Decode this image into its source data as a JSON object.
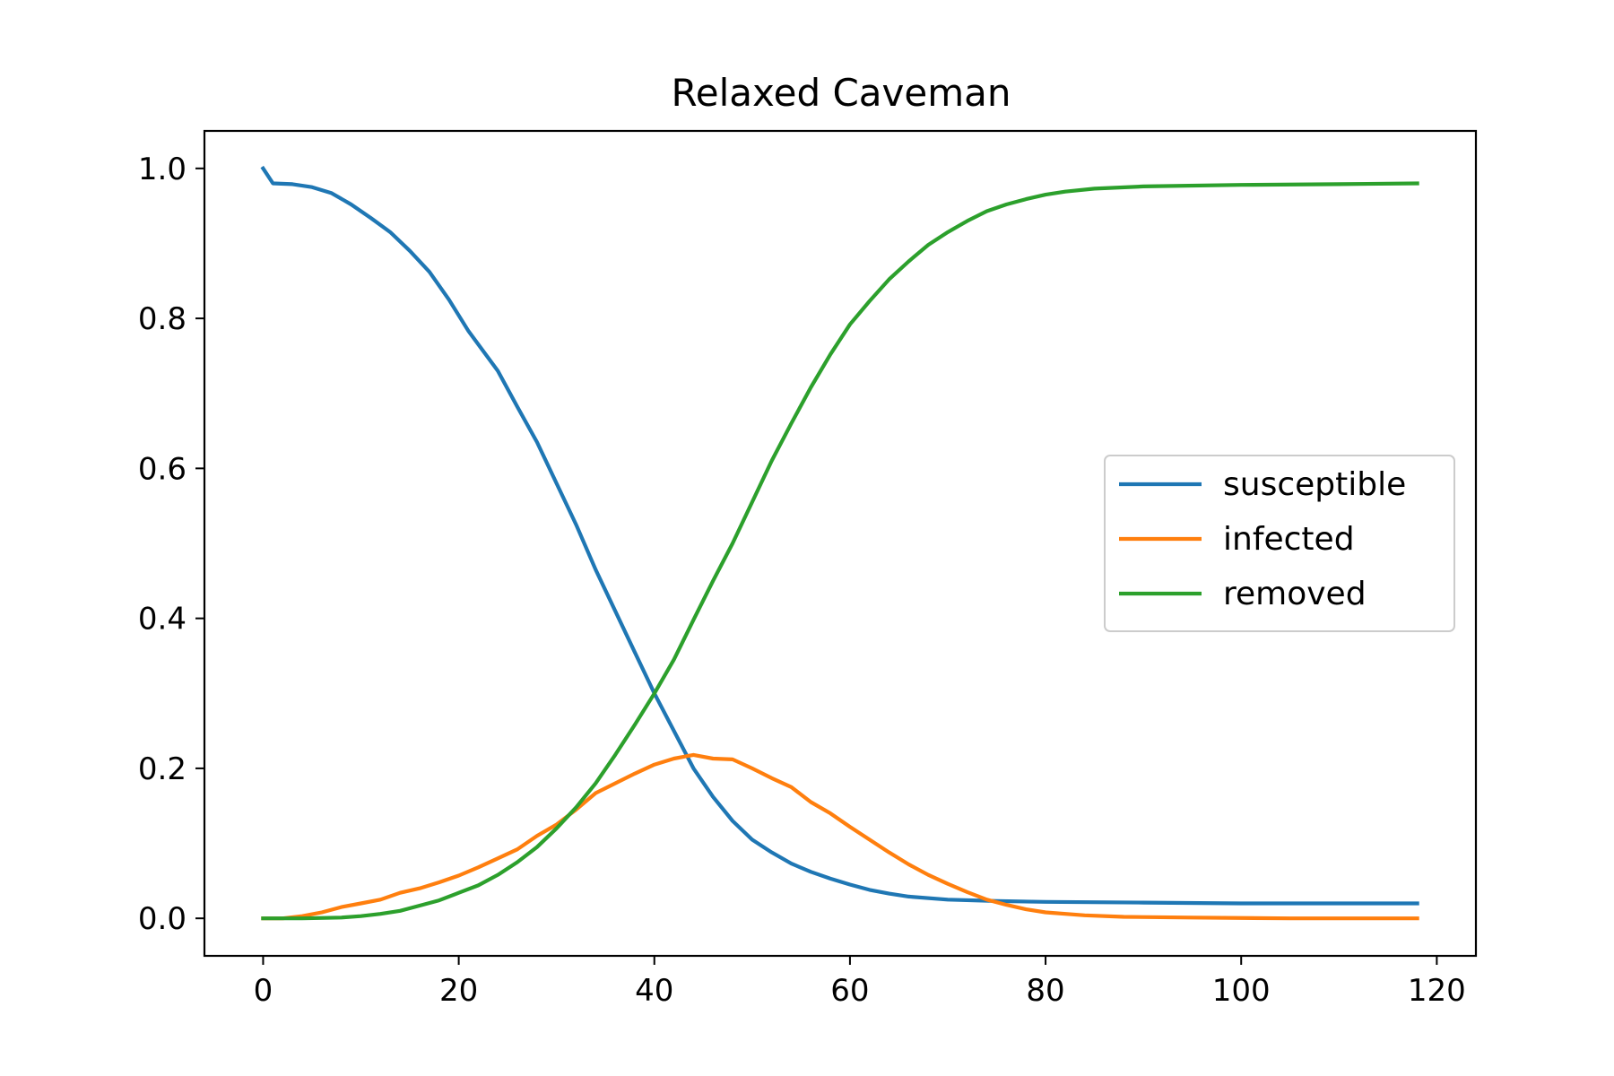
{
  "chart_data": {
    "type": "line",
    "title": "Relaxed Caveman",
    "xlabel": "",
    "ylabel": "",
    "xlim": [
      -6,
      124
    ],
    "ylim": [
      -0.05,
      1.05
    ],
    "xticks": [
      0,
      20,
      40,
      60,
      80,
      100,
      120
    ],
    "xtick_labels": [
      "0",
      "20",
      "40",
      "60",
      "80",
      "100",
      "120"
    ],
    "yticks": [
      0.0,
      0.2,
      0.4,
      0.6,
      0.8,
      1.0
    ],
    "ytick_labels": [
      "0.0",
      "0.2",
      "0.4",
      "0.6",
      "0.8",
      "1.0"
    ],
    "grid": false,
    "legend_position": "center-right",
    "series": [
      {
        "name": "susceptible",
        "color": "#1f77b4",
        "points": [
          [
            0,
            1.0
          ],
          [
            1,
            0.98
          ],
          [
            3,
            0.979
          ],
          [
            5,
            0.975
          ],
          [
            7,
            0.967
          ],
          [
            9,
            0.952
          ],
          [
            11,
            0.934
          ],
          [
            13,
            0.915
          ],
          [
            15,
            0.89
          ],
          [
            17,
            0.862
          ],
          [
            19,
            0.825
          ],
          [
            21,
            0.783
          ],
          [
            24,
            0.73
          ],
          [
            26,
            0.682
          ],
          [
            28,
            0.635
          ],
          [
            30,
            0.58
          ],
          [
            32,
            0.525
          ],
          [
            34,
            0.465
          ],
          [
            36,
            0.41
          ],
          [
            38,
            0.355
          ],
          [
            40,
            0.3
          ],
          [
            42,
            0.25
          ],
          [
            44,
            0.2
          ],
          [
            46,
            0.162
          ],
          [
            48,
            0.13
          ],
          [
            50,
            0.105
          ],
          [
            52,
            0.088
          ],
          [
            54,
            0.073
          ],
          [
            56,
            0.062
          ],
          [
            58,
            0.053
          ],
          [
            60,
            0.045
          ],
          [
            62,
            0.038
          ],
          [
            64,
            0.033
          ],
          [
            66,
            0.029
          ],
          [
            70,
            0.025
          ],
          [
            75,
            0.023
          ],
          [
            80,
            0.022
          ],
          [
            90,
            0.021
          ],
          [
            100,
            0.02
          ],
          [
            110,
            0.02
          ],
          [
            118,
            0.02
          ]
        ]
      },
      {
        "name": "infected",
        "color": "#ff7f0e",
        "points": [
          [
            0,
            0.0
          ],
          [
            2,
            0.0
          ],
          [
            4,
            0.003
          ],
          [
            6,
            0.008
          ],
          [
            8,
            0.015
          ],
          [
            10,
            0.02
          ],
          [
            12,
            0.025
          ],
          [
            14,
            0.034
          ],
          [
            16,
            0.04
          ],
          [
            18,
            0.048
          ],
          [
            20,
            0.057
          ],
          [
            22,
            0.068
          ],
          [
            24,
            0.08
          ],
          [
            26,
            0.092
          ],
          [
            28,
            0.11
          ],
          [
            30,
            0.125
          ],
          [
            32,
            0.145
          ],
          [
            34,
            0.167
          ],
          [
            36,
            0.18
          ],
          [
            38,
            0.193
          ],
          [
            40,
            0.205
          ],
          [
            42,
            0.213
          ],
          [
            44,
            0.218
          ],
          [
            46,
            0.213
          ],
          [
            48,
            0.212
          ],
          [
            50,
            0.2
          ],
          [
            52,
            0.187
          ],
          [
            54,
            0.175
          ],
          [
            56,
            0.155
          ],
          [
            58,
            0.14
          ],
          [
            60,
            0.122
          ],
          [
            62,
            0.105
          ],
          [
            64,
            0.088
          ],
          [
            66,
            0.072
          ],
          [
            68,
            0.058
          ],
          [
            70,
            0.046
          ],
          [
            72,
            0.035
          ],
          [
            74,
            0.025
          ],
          [
            76,
            0.018
          ],
          [
            78,
            0.012
          ],
          [
            80,
            0.008
          ],
          [
            84,
            0.004
          ],
          [
            88,
            0.002
          ],
          [
            95,
            0.001
          ],
          [
            105,
            0.0
          ],
          [
            118,
            0.0
          ]
        ]
      },
      {
        "name": "removed",
        "color": "#2ca02c",
        "points": [
          [
            0,
            0.0
          ],
          [
            4,
            0.0
          ],
          [
            8,
            0.001
          ],
          [
            10,
            0.003
          ],
          [
            12,
            0.006
          ],
          [
            14,
            0.01
          ],
          [
            16,
            0.017
          ],
          [
            18,
            0.024
          ],
          [
            20,
            0.034
          ],
          [
            22,
            0.044
          ],
          [
            24,
            0.058
          ],
          [
            26,
            0.075
          ],
          [
            28,
            0.095
          ],
          [
            30,
            0.12
          ],
          [
            32,
            0.148
          ],
          [
            34,
            0.18
          ],
          [
            36,
            0.218
          ],
          [
            38,
            0.258
          ],
          [
            40,
            0.3
          ],
          [
            42,
            0.345
          ],
          [
            44,
            0.398
          ],
          [
            46,
            0.45
          ],
          [
            48,
            0.5
          ],
          [
            50,
            0.555
          ],
          [
            52,
            0.61
          ],
          [
            54,
            0.66
          ],
          [
            56,
            0.708
          ],
          [
            58,
            0.752
          ],
          [
            60,
            0.792
          ],
          [
            62,
            0.823
          ],
          [
            64,
            0.852
          ],
          [
            66,
            0.876
          ],
          [
            68,
            0.898
          ],
          [
            70,
            0.915
          ],
          [
            72,
            0.93
          ],
          [
            74,
            0.943
          ],
          [
            76,
            0.952
          ],
          [
            78,
            0.959
          ],
          [
            80,
            0.965
          ],
          [
            82,
            0.969
          ],
          [
            85,
            0.973
          ],
          [
            90,
            0.976
          ],
          [
            100,
            0.978
          ],
          [
            110,
            0.979
          ],
          [
            118,
            0.98
          ]
        ]
      }
    ]
  }
}
